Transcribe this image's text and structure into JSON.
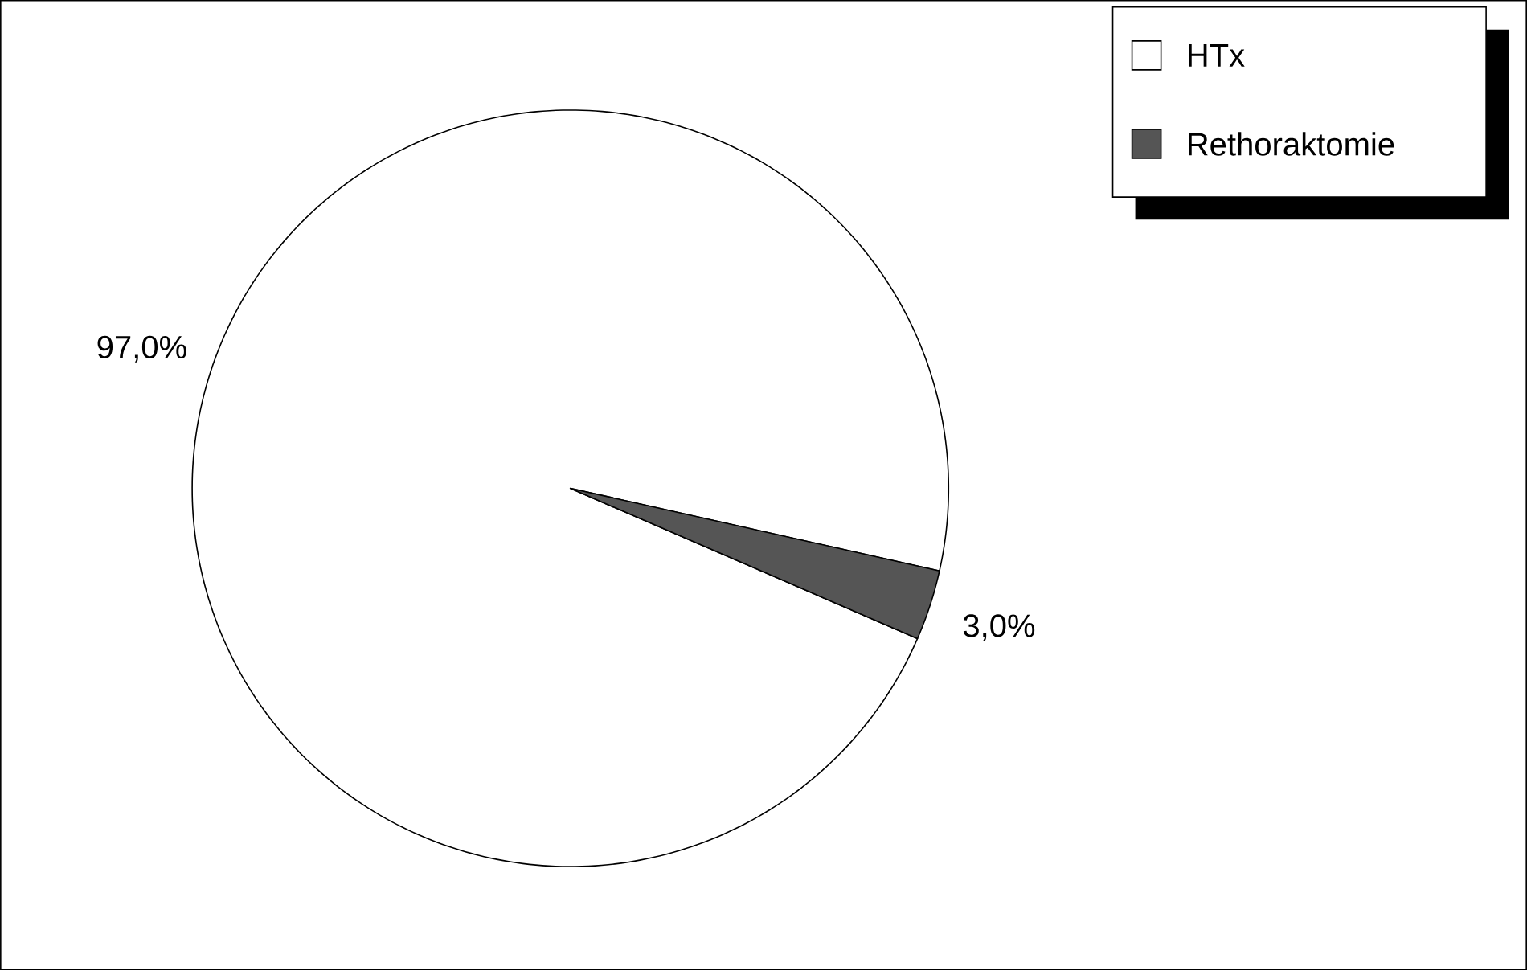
{
  "chart_data": {
    "type": "pie",
    "categories": [
      "HTx",
      "Rethoraktomie"
    ],
    "values": [
      97.0,
      3.0
    ],
    "colors": [
      "#ffffff",
      "#555555"
    ],
    "value_labels": [
      "97,0%",
      "3,0%"
    ],
    "legend": "top right"
  }
}
